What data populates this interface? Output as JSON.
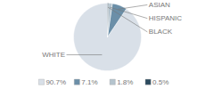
{
  "chart_data": {
    "type": "pie",
    "categories": [
      "WHITE",
      "ASIAN",
      "HISPANIC",
      "BLACK"
    ],
    "values": [
      90.7,
      7.1,
      1.8,
      0.5
    ],
    "value_labels": [
      "90.7%",
      "7.1%",
      "1.8%",
      "0.5%"
    ],
    "colors": [
      "#d9e0e8",
      "#6b8fa8",
      "#b5c4ce",
      "#2c4a5e"
    ],
    "legend": "bottom"
  }
}
